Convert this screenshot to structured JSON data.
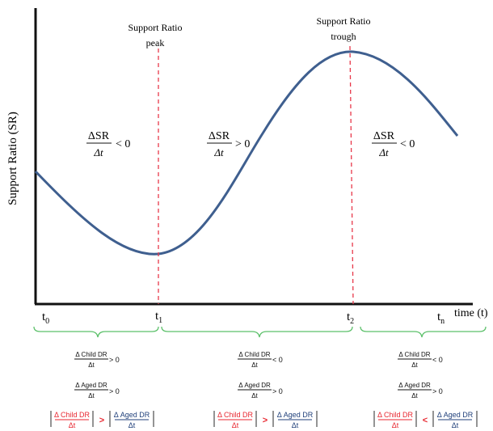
{
  "axes": {
    "y_label": "Support Ratio (SR)",
    "x_label": "time (t)"
  },
  "time_ticks": [
    {
      "base": "t",
      "sub": "0"
    },
    {
      "base": "t",
      "sub": "1"
    },
    {
      "base": "t",
      "sub": "2"
    },
    {
      "base": "t",
      "sub": "n"
    }
  ],
  "marker_labels": {
    "first": [
      "Support Ratio",
      "peak"
    ],
    "second": [
      "Support Ratio",
      "trough"
    ]
  },
  "slope_fraction": {
    "num": "ΔSR",
    "den": "Δt"
  },
  "slope_signs": [
    "< 0",
    "> 0",
    "< 0"
  ],
  "phases": [
    {
      "child": {
        "num": "Δ Child DR",
        "den": "Δt",
        "rel": "> 0"
      },
      "aged": {
        "num": "Δ Aged DR",
        "den": "Δt",
        "rel": "> 0"
      },
      "compare": ">"
    },
    {
      "child": {
        "num": "Δ Child DR",
        "den": "Δt",
        "rel": "< 0"
      },
      "aged": {
        "num": "Δ Aged DR",
        "den": "Δt",
        "rel": "> 0"
      },
      "compare": ">"
    },
    {
      "child": {
        "num": "Δ Child DR",
        "den": "Δt",
        "rel": "< 0"
      },
      "aged": {
        "num": "Δ Aged DR",
        "den": "Δt",
        "rel": "> 0"
      },
      "compare": "<"
    }
  ],
  "colors": {
    "curve": "#3f5f8f",
    "marker_line": "#e8384a",
    "brace": "#5cc06a",
    "child_red": "#e8262f",
    "aged_blue": "#1f3f7a",
    "text": "#111111"
  }
}
